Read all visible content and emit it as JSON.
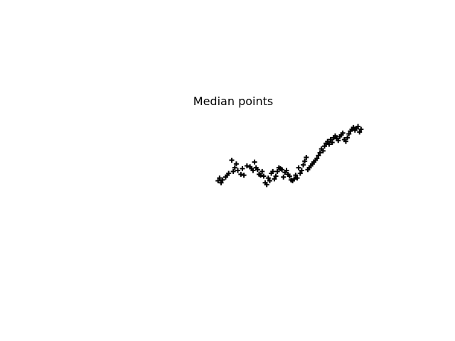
{
  "chart_data": {
    "type": "scatter",
    "title": "Median points",
    "xlabel": "",
    "ylabel": "",
    "axes_visible": false,
    "grid": false,
    "legend": "none",
    "marker": "plus",
    "marker_color": "#000000",
    "xlim": [
      0,
      100
    ],
    "ylim": [
      0,
      100
    ],
    "series": [
      {
        "points": [
          [
            5,
            42
          ],
          [
            6,
            45
          ],
          [
            7,
            40
          ],
          [
            8,
            43
          ],
          [
            10,
            46
          ],
          [
            11,
            48
          ],
          [
            12,
            50
          ],
          [
            14,
            64
          ],
          [
            15,
            52
          ],
          [
            17,
            60
          ],
          [
            16,
            56
          ],
          [
            18,
            53
          ],
          [
            20,
            49
          ],
          [
            22,
            48
          ],
          [
            21,
            55
          ],
          [
            24,
            58
          ],
          [
            26,
            57
          ],
          [
            27,
            55
          ],
          [
            28,
            53
          ],
          [
            29,
            62
          ],
          [
            30,
            56
          ],
          [
            31,
            54
          ],
          [
            32,
            49
          ],
          [
            33,
            48
          ],
          [
            34,
            52
          ],
          [
            35,
            47
          ],
          [
            36,
            40
          ],
          [
            37,
            38
          ],
          [
            38,
            45
          ],
          [
            39,
            42
          ],
          [
            40,
            50
          ],
          [
            41,
            52
          ],
          [
            42,
            44
          ],
          [
            43,
            47
          ],
          [
            44,
            52
          ],
          [
            45,
            56
          ],
          [
            46,
            55
          ],
          [
            47,
            54
          ],
          [
            48,
            46
          ],
          [
            49,
            51
          ],
          [
            50,
            53
          ],
          [
            51,
            49
          ],
          [
            52,
            47
          ],
          [
            53,
            43
          ],
          [
            54,
            42
          ],
          [
            55,
            44
          ],
          [
            56,
            48
          ],
          [
            57,
            45
          ],
          [
            58,
            56
          ],
          [
            59,
            50
          ],
          [
            60,
            53
          ],
          [
            61,
            59
          ],
          [
            62,
            63
          ],
          [
            63,
            67
          ],
          [
            64,
            54
          ],
          [
            65,
            56
          ],
          [
            66,
            58
          ],
          [
            67,
            60
          ],
          [
            68,
            62
          ],
          [
            69,
            64
          ],
          [
            70,
            66
          ],
          [
            71,
            69
          ],
          [
            72,
            72
          ],
          [
            73,
            76
          ],
          [
            74,
            74
          ],
          [
            75,
            79
          ],
          [
            76,
            82
          ],
          [
            77,
            84
          ],
          [
            78,
            81
          ],
          [
            79,
            86
          ],
          [
            80,
            83
          ],
          [
            81,
            88
          ],
          [
            82,
            90
          ],
          [
            83,
            87
          ],
          [
            84,
            85
          ],
          [
            85,
            89
          ],
          [
            86,
            91
          ],
          [
            87,
            93
          ],
          [
            88,
            86
          ],
          [
            89,
            84
          ],
          [
            90,
            88
          ],
          [
            91,
            92
          ],
          [
            92,
            95
          ],
          [
            93,
            97
          ],
          [
            94,
            99
          ],
          [
            95,
            96
          ],
          [
            96,
            98
          ],
          [
            97,
            100
          ],
          [
            98,
            94
          ],
          [
            99,
            97
          ]
        ]
      }
    ]
  }
}
